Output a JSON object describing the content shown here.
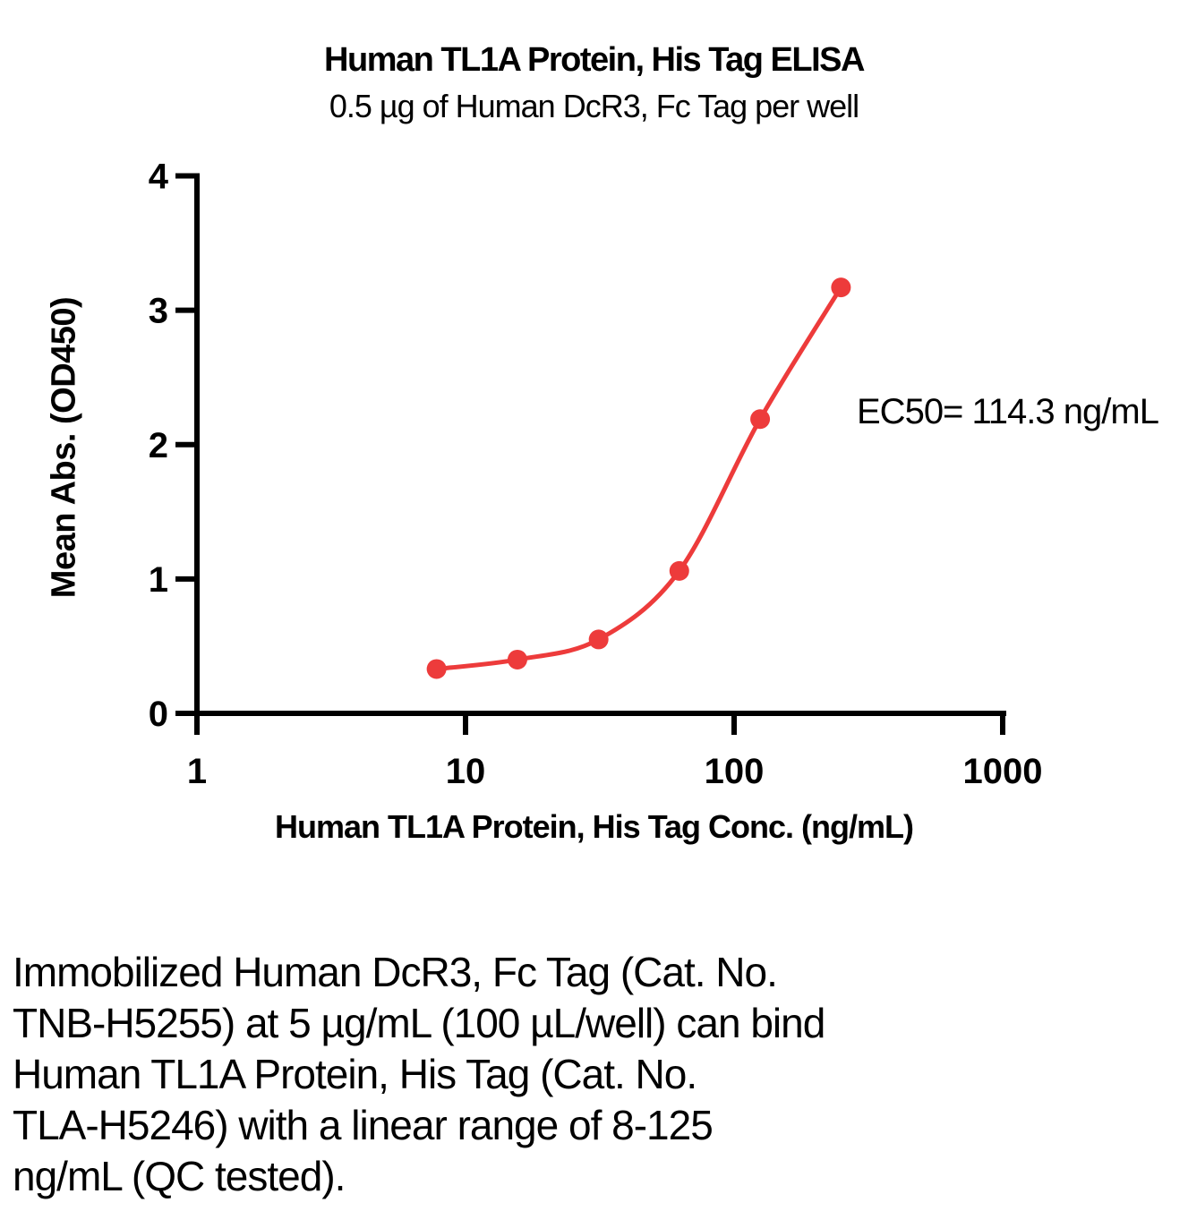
{
  "chart": {
    "title": "Human TL1A Protein, His Tag ELISA",
    "subtitle": "0.5 µg of Human DcR3, Fc Tag per well",
    "ylabel": "Mean Abs. (OD450)",
    "xlabel": "Human TL1A Protein, His Tag Conc. (ng/mL)",
    "annotation": "EC50= 114.3 ng/mL"
  },
  "chart_data": {
    "type": "line",
    "series": [
      {
        "name": "Human TL1A Protein, His Tag",
        "x": [
          7.8,
          15.6,
          31.3,
          62.5,
          125,
          250
        ],
        "y": [
          0.33,
          0.4,
          0.55,
          1.06,
          2.19,
          3.17
        ]
      }
    ],
    "title": "Human TL1A Protein, His Tag ELISA",
    "subtitle": "0.5 µg of Human DcR3, Fc Tag per well",
    "xlabel": "Human TL1A Protein, His Tag Conc. (ng/mL)",
    "ylabel": "Mean Abs. (OD450)",
    "x_scale": "log10",
    "xlim": [
      1,
      1000
    ],
    "ylim": [
      0,
      4
    ],
    "x_ticks": [
      1,
      10,
      100,
      1000
    ],
    "x_tick_labels": [
      "1",
      "10",
      "100",
      "1000"
    ],
    "y_ticks": [
      0,
      1,
      2,
      3,
      4
    ],
    "y_tick_labels": [
      "0",
      "1",
      "2",
      "3",
      "4"
    ],
    "grid": false,
    "legend": "none",
    "annotations": [
      "EC50= 114.3 ng/mL"
    ],
    "ec50_ng_ml": 114.3,
    "curve_color": "#ED3B3B",
    "axis_color": "#000000",
    "marker": "circle"
  },
  "caption": {
    "lines": [
      "Immobilized Human DcR3, Fc Tag (Cat. No.",
      "TNB-H5255) at 5 µg/mL (100 µL/well) can bind",
      "Human TL1A Protein, His Tag (Cat. No.",
      "TLA-H5246) with a linear range of 8-125",
      "ng/mL (QC tested)."
    ]
  }
}
